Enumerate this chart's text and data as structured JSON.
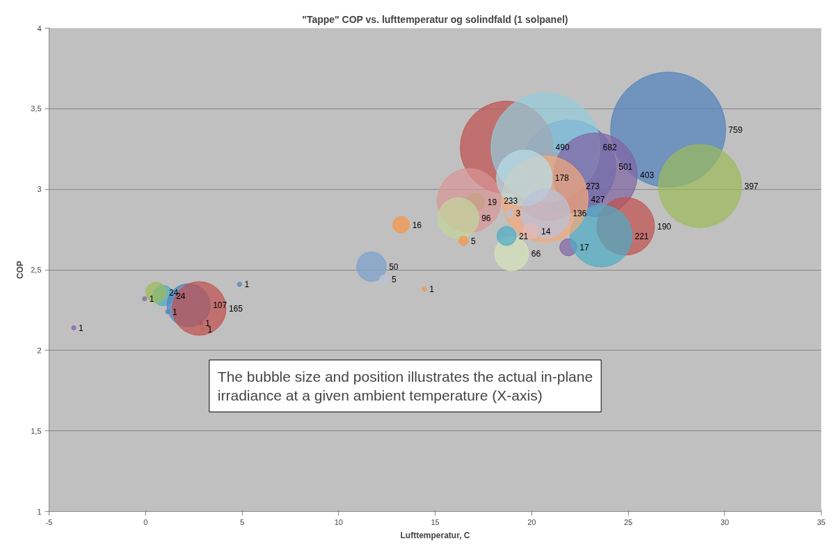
{
  "chart_data": {
    "type": "bubble",
    "title": "\"Tappe\" COP vs. lufttemperatur og solindfald (1 solpanel)",
    "xlabel": "Lufttemperatur, C",
    "ylabel": "COP",
    "annotations": [
      "The bubble size and position illustrates the actual in-plane irradiance at a given ambient temperature (X-axis)"
    ],
    "x": [
      -3.72,
      -0.05,
      1.14,
      2.85,
      2.96,
      21.94,
      20.87,
      17.1,
      21.9,
      27.07,
      18.7,
      20.72,
      23.3,
      28.72,
      24.87,
      23.59,
      20.69,
      16.76,
      19.62,
      20.72,
      16.2,
      18.96,
      18.85,
      19.95,
      18.7,
      13.24,
      16.47,
      11.7,
      12.36,
      14.45,
      4.87,
      0.91,
      0.54,
      2.23,
      2.78
    ],
    "values": [
      2.14,
      2.32,
      2.24,
      2.17,
      2.13,
      3.14,
      3.02,
      2.92,
      2.64,
      3.37,
      3.26,
      3.26,
      3.09,
      3.02,
      2.77,
      2.71,
      2.94,
      2.93,
      3.07,
      2.85,
      2.82,
      2.6,
      2.85,
      2.74,
      2.71,
      2.78,
      2.68,
      2.52,
      2.44,
      2.38,
      2.41,
      2.34,
      2.36,
      2.28,
      2.26
    ],
    "sizes": [
      1,
      1,
      1,
      1,
      1,
      501,
      273,
      19,
      17,
      759,
      490,
      682,
      403,
      397,
      190,
      221,
      427,
      233,
      178,
      136,
      96,
      66,
      3,
      14,
      21,
      16,
      5,
      50,
      5,
      1,
      1,
      24,
      24,
      107,
      165
    ],
    "value_labels": [
      "1",
      "1",
      "1",
      "1",
      "1",
      "501",
      "273",
      "19",
      "17",
      "759",
      "490",
      "682",
      "403",
      "397",
      "190",
      "221",
      "427",
      "233",
      "178",
      "136",
      "96",
      "66",
      "3",
      "14",
      "21",
      "16",
      "5",
      "50",
      "5",
      "1",
      "1",
      "24",
      "24",
      "107",
      "165"
    ],
    "colors": [
      "#8064a2",
      "#8064a2",
      "#4f81bd",
      "#c0504d",
      "#9bbb59",
      "#4f81bd",
      "#c0504d",
      "#9bbb59",
      "#8064a2",
      "#4f81bd",
      "#c0504d",
      "#93cddd",
      "#8064a2",
      "#9bbb59",
      "#c0504d",
      "#4bacc6",
      "#f4a97a",
      "#d99594",
      "#b7dee8",
      "#b9c2db",
      "#c3d69b",
      "#d8e4bc",
      "#b9c2db",
      "#e6b9b8",
      "#4bacc6",
      "#f79646",
      "#f79646",
      "#7ba0cd",
      "#b9c2db",
      "#f79646",
      "#4f81bd",
      "#4bacc6",
      "#9bbb59",
      "#4f81bd",
      "#c0504d"
    ],
    "xlim": [
      -5,
      35
    ],
    "xticks": [
      -5,
      0,
      5,
      10,
      15,
      20,
      25,
      30,
      35
    ],
    "ylim": [
      1,
      4
    ],
    "yticks": [
      1,
      {
        "value": 1.5,
        "label": "1,5"
      },
      2,
      {
        "value": 2.5,
        "label": "2,5"
      },
      3,
      {
        "value": 3.5,
        "label": "3,5"
      },
      4
    ],
    "grid": "y"
  }
}
